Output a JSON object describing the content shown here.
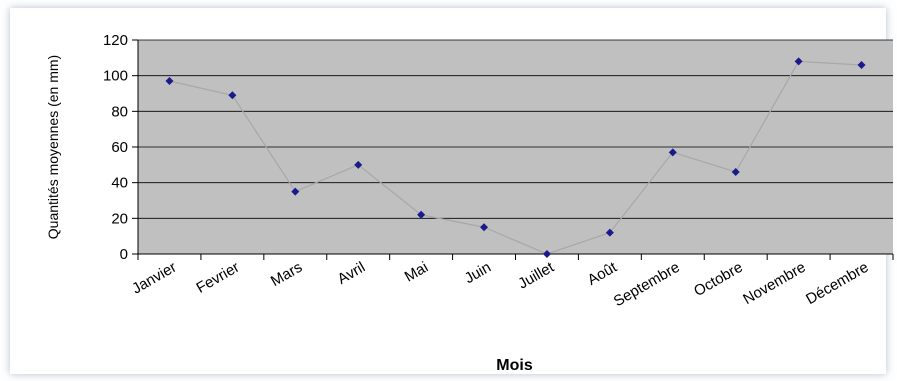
{
  "chart_data": {
    "type": "line",
    "title": "",
    "xlabel": "Mois",
    "ylabel": "Quantités moyennes (en mm)",
    "categories": [
      "Janvier",
      "Fevrier",
      "Mars",
      "Avril",
      "Mai",
      "Juin",
      "Juillet",
      "Août",
      "Septembre",
      "Octobre",
      "Novembre",
      "Décembre"
    ],
    "series": [
      {
        "values": [
          97,
          89,
          35,
          50,
          22,
          15,
          0,
          12,
          57,
          46,
          108,
          106
        ]
      }
    ],
    "ylim": [
      0,
      120
    ],
    "yticks": [
      0,
      20,
      40,
      60,
      80,
      100,
      120
    ],
    "grid": true,
    "legend": "none",
    "colors": {
      "plot_bg": "#c0c0c0",
      "grid": "#000000",
      "line": "#a8a8a8",
      "marker": "#1a1a8c"
    }
  }
}
